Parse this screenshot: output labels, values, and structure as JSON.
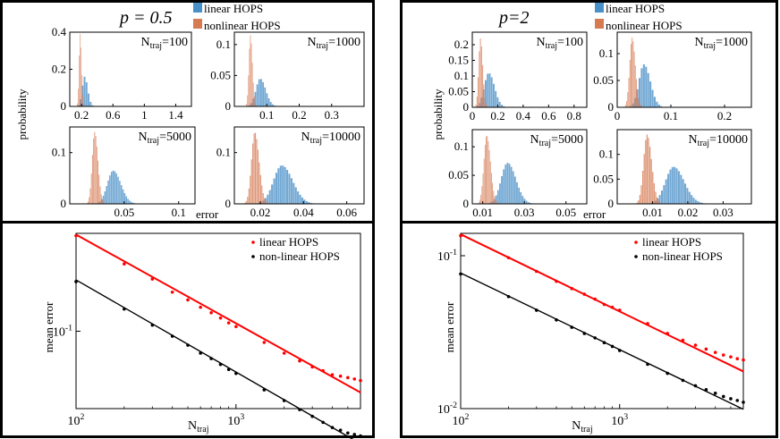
{
  "chart_data": [
    {
      "type": "histogram-grid",
      "title": "p = 0.5",
      "legend": [
        "linear HOPS",
        "nonlinear HOPS"
      ],
      "ylabel": "probability",
      "xlabel": "error",
      "subplots": [
        {
          "label": "N",
          "sub": "traj",
          "value": "=100",
          "xlim": [
            0.05,
            1.6
          ],
          "ylim": [
            0,
            0.4
          ],
          "xticks": [
            "0.2",
            "0.6",
            "1",
            "1.4"
          ],
          "xtick_vals": [
            0.2,
            0.6,
            1.0,
            1.4
          ],
          "yticks": [
            "0",
            "0.2",
            "0.4"
          ],
          "ytick_vals": [
            0,
            0.2,
            0.4
          ],
          "linear": {
            "mean": 0.24,
            "sd": 0.04,
            "peak": 0.16,
            "width": 0.025
          },
          "nonlinear": {
            "mean": 0.185,
            "sd": 0.018,
            "peak": 0.39,
            "width": 0.012
          }
        },
        {
          "label": "N",
          "sub": "traj",
          "value": "=1000",
          "xlim": [
            0.0,
            0.4
          ],
          "ylim": [
            0,
            0.12
          ],
          "xticks": [
            "0.1",
            "0.2",
            "0.3"
          ],
          "xtick_vals": [
            0.1,
            0.2,
            0.3
          ],
          "yticks": [
            "0",
            "0.05",
            "0.1"
          ],
          "ytick_vals": [
            0,
            0.05,
            0.1
          ],
          "linear": {
            "mean": 0.08,
            "sd": 0.017,
            "peak": 0.045,
            "width": 0.006
          },
          "nonlinear": {
            "mean": 0.05,
            "sd": 0.006,
            "peak": 0.115,
            "width": 0.003
          }
        },
        {
          "label": "N",
          "sub": "traj",
          "value": "=5000",
          "xlim": [
            0.0,
            0.115
          ],
          "ylim": [
            0,
            0.15
          ],
          "xticks": [
            "0.05",
            "0.1"
          ],
          "xtick_vals": [
            0.05,
            0.1
          ],
          "yticks": [
            "0",
            "0.1"
          ],
          "ytick_vals": [
            0,
            0.1
          ],
          "linear": {
            "mean": 0.04,
            "sd": 0.007,
            "peak": 0.065,
            "width": 0.0015
          },
          "nonlinear": {
            "mean": 0.023,
            "sd": 0.003,
            "peak": 0.14,
            "width": 0.001
          }
        },
        {
          "label": "N",
          "sub": "traj",
          "value": "=10000",
          "xlim": [
            0.008,
            0.068
          ],
          "ylim": [
            0,
            0.15
          ],
          "xticks": [
            "0.02",
            "0.04",
            "0.06"
          ],
          "xtick_vals": [
            0.02,
            0.04,
            0.06
          ],
          "yticks": [
            "0",
            "0.1"
          ],
          "ytick_vals": [
            0,
            0.1
          ],
          "linear": {
            "mean": 0.03,
            "sd": 0.005,
            "peak": 0.075,
            "width": 0.001
          },
          "nonlinear": {
            "mean": 0.0175,
            "sd": 0.002,
            "peak": 0.14,
            "width": 0.0006
          }
        }
      ]
    },
    {
      "type": "histogram-grid",
      "title": "p=2",
      "legend": [
        "linear HOPS",
        "nonlinear HOPS"
      ],
      "ylabel": "probability",
      "xlabel": "error",
      "subplots": [
        {
          "label": "N",
          "sub": "traj",
          "value": "=100",
          "xlim": [
            0.0,
            0.9
          ],
          "ylim": [
            0,
            0.24
          ],
          "xticks": [
            "0",
            "0.2",
            "0.4",
            "0.6",
            "0.8"
          ],
          "xtick_vals": [
            0,
            0.2,
            0.4,
            0.6,
            0.8
          ],
          "yticks": [
            "0",
            "0.05",
            "0.1",
            "0.15",
            "0.2"
          ],
          "ytick_vals": [
            0,
            0.05,
            0.1,
            0.15,
            0.2
          ],
          "linear": {
            "mean": 0.13,
            "sd": 0.045,
            "peak": 0.11,
            "width": 0.016
          },
          "nonlinear": {
            "mean": 0.065,
            "sd": 0.018,
            "peak": 0.22,
            "width": 0.009
          }
        },
        {
          "label": "N",
          "sub": "traj",
          "value": "=1000",
          "xlim": [
            0.0,
            0.25
          ],
          "ylim": [
            0,
            0.14
          ],
          "xticks": [
            "0",
            "0.1",
            "0.2"
          ],
          "xtick_vals": [
            0,
            0.1,
            0.2
          ],
          "yticks": [
            "0",
            "0.05",
            "0.1"
          ],
          "ytick_vals": [
            0,
            0.05,
            0.1
          ],
          "linear": {
            "mean": 0.05,
            "sd": 0.012,
            "peak": 0.08,
            "width": 0.004
          },
          "nonlinear": {
            "mean": 0.028,
            "sd": 0.006,
            "peak": 0.13,
            "width": 0.002
          }
        },
        {
          "label": "N",
          "sub": "traj",
          "value": "=5000",
          "xlim": [
            0.005,
            0.06
          ],
          "ylim": [
            0,
            0.13
          ],
          "xticks": [
            "0.01",
            "0.03",
            "0.05"
          ],
          "xtick_vals": [
            0.01,
            0.03,
            0.05
          ],
          "yticks": [
            "0",
            "0.05",
            "0.1"
          ],
          "ytick_vals": [
            0,
            0.05,
            0.1
          ],
          "linear": {
            "mean": 0.022,
            "sd": 0.004,
            "peak": 0.072,
            "width": 0.0009
          },
          "nonlinear": {
            "mean": 0.012,
            "sd": 0.0018,
            "peak": 0.12,
            "width": 0.0005
          }
        },
        {
          "label": "N",
          "sub": "traj",
          "value": "=10000",
          "xlim": [
            0.0,
            0.038
          ],
          "ylim": [
            0,
            0.15
          ],
          "xticks": [
            "0.01",
            "0.02",
            "0.03"
          ],
          "xtick_vals": [
            0.01,
            0.02,
            0.03
          ],
          "yticks": [
            "0",
            "0.05",
            "0.1"
          ],
          "ytick_vals": [
            0,
            0.05,
            0.1
          ],
          "linear": {
            "mean": 0.016,
            "sd": 0.003,
            "peak": 0.075,
            "width": 0.0006
          },
          "nonlinear": {
            "mean": 0.0085,
            "sd": 0.0013,
            "peak": 0.14,
            "width": 0.0004
          }
        }
      ]
    },
    {
      "type": "scatter-loglog",
      "title": "p = 0.5",
      "xlabel": "N",
      "xlabel_sub": "traj",
      "ylabel": "mean error",
      "xlim": [
        100,
        6000
      ],
      "ylim": [
        0.038,
        0.34
      ],
      "xtick_labels": [
        {
          "base": "10",
          "exp": "2",
          "value": 100
        },
        {
          "base": "10",
          "exp": "3",
          "value": 1000
        }
      ],
      "ytick_labels": [
        {
          "base": "10",
          "exp": "-1",
          "value": 0.1
        }
      ],
      "series": [
        {
          "name": "linear HOPS",
          "color": "#ff0000",
          "x": [
            100,
            200,
            300,
            400,
            500,
            600,
            700,
            800,
            900,
            1000,
            1500,
            2000,
            2500,
            3000,
            3500,
            4000,
            4500,
            5000,
            5500,
            6000
          ],
          "y": [
            0.33,
            0.232,
            0.192,
            0.163,
            0.148,
            0.135,
            0.126,
            0.118,
            0.111,
            0.106,
            0.087,
            0.076,
            0.069,
            0.064,
            0.061,
            0.058,
            0.057,
            0.056,
            0.055,
            0.054
          ],
          "fit": {
            "x": [
              100,
              6000
            ],
            "y": [
              0.335,
              0.0465
            ]
          }
        },
        {
          "name": "non-linear HOPS",
          "color": "#000000",
          "x": [
            100,
            200,
            300,
            400,
            500,
            600,
            700,
            800,
            900,
            1000,
            1500,
            2000,
            2500,
            3000,
            3500,
            4000,
            4500,
            5000,
            5500,
            6000
          ],
          "y": [
            0.186,
            0.132,
            0.108,
            0.094,
            0.084,
            0.076,
            0.071,
            0.066,
            0.062,
            0.059,
            0.048,
            0.042,
            0.0375,
            0.0345,
            0.032,
            0.03,
            0.029,
            0.028,
            0.0275,
            0.027
          ],
          "fit": {
            "x": [
              100,
              6000
            ],
            "y": [
              0.19,
              0.0245
            ]
          }
        }
      ]
    },
    {
      "type": "scatter-loglog",
      "title": "p=2",
      "xlabel": "N",
      "xlabel_sub": "traj",
      "ylabel": "mean error",
      "xlim": [
        100,
        6000
      ],
      "ylim": [
        0.01,
        0.14
      ],
      "xtick_labels": [
        {
          "base": "10",
          "exp": "2",
          "value": 100
        },
        {
          "base": "10",
          "exp": "3",
          "value": 1000
        }
      ],
      "ytick_labels": [
        {
          "base": "10",
          "exp": "-1",
          "value": 0.1
        },
        {
          "base": "10",
          "exp": "-2",
          "value": 0.01
        }
      ],
      "series": [
        {
          "name": "linear HOPS",
          "color": "#ff0000",
          "x": [
            100,
            200,
            300,
            400,
            500,
            600,
            700,
            800,
            900,
            1000,
            1500,
            2000,
            2500,
            3000,
            3500,
            4000,
            4500,
            5000,
            5500,
            6000
          ],
          "y": [
            0.135,
            0.097,
            0.079,
            0.068,
            0.061,
            0.056,
            0.052,
            0.048,
            0.046,
            0.044,
            0.036,
            0.031,
            0.028,
            0.026,
            0.0245,
            0.0233,
            0.0224,
            0.0218,
            0.0212,
            0.0208
          ],
          "fit": {
            "x": [
              100,
              6000
            ],
            "y": [
              0.138,
              0.0175
            ]
          }
        },
        {
          "name": "non-linear HOPS",
          "color": "#000000",
          "x": [
            100,
            200,
            300,
            400,
            500,
            600,
            700,
            800,
            900,
            1000,
            1500,
            2000,
            2500,
            3000,
            3500,
            4000,
            4500,
            5000,
            5500,
            6000
          ],
          "y": [
            0.076,
            0.054,
            0.044,
            0.038,
            0.034,
            0.031,
            0.029,
            0.027,
            0.0255,
            0.024,
            0.0195,
            0.017,
            0.0153,
            0.0141,
            0.0133,
            0.0126,
            0.012,
            0.0116,
            0.0113,
            0.011
          ],
          "fit": {
            "x": [
              100,
              6000
            ],
            "y": [
              0.077,
              0.0099
            ]
          }
        }
      ]
    }
  ],
  "colors": {
    "linear": "#4a90c8",
    "nonlinear": "#d67a52",
    "overlap": "#7d6a6e",
    "red": "#ff0000",
    "black": "#000000"
  }
}
